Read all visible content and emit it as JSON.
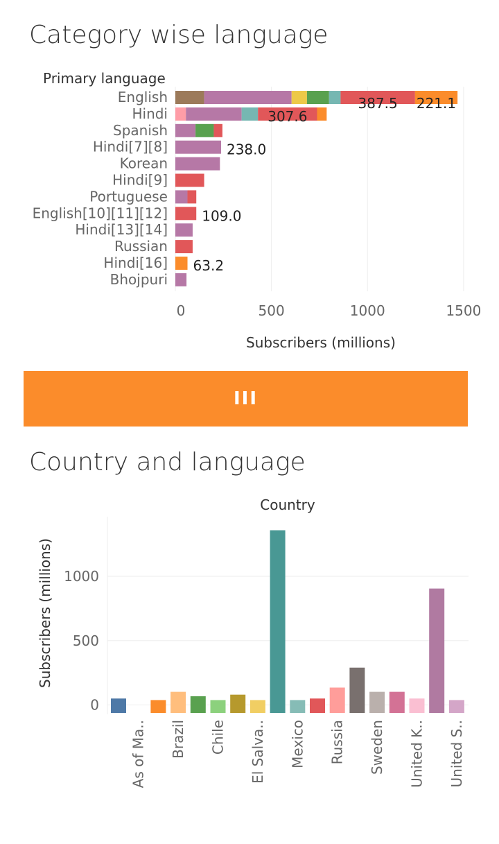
{
  "sections": {
    "top_title": "Category wise language",
    "bottom_title": "Country and language",
    "divider_label": "III"
  },
  "chart_data": [
    {
      "type": "bar",
      "orientation": "horizontal",
      "stacked": true,
      "title": "Category wise language",
      "ylabel": "Primary language",
      "xlabel": "Subscribers (millions)",
      "xlim": [
        0,
        1500
      ],
      "xticks": [
        0,
        500,
        1000,
        1500
      ],
      "grid": true,
      "categories": [
        "English",
        "Hindi",
        "Spanish",
        "Hindi[7][8]",
        "Korean",
        "Hindi[9]",
        "Portuguese",
        "English[10][11][12]",
        "Hindi[13][14]",
        "Russian",
        "Hindi[16]",
        "Bhojpuri"
      ],
      "rows": [
        {
          "segments": [
            {
              "value": 150,
              "color": "#9c7a5a"
            },
            {
              "value": 455,
              "color": "#b678a6"
            },
            {
              "value": 80,
              "color": "#edc948"
            },
            {
              "value": 115,
              "color": "#59a14f"
            },
            {
              "value": 60,
              "color": "#76b7b2"
            },
            {
              "value": 387.5,
              "color": "#e15759"
            },
            {
              "value": 221.1,
              "color": "#fb8c2b"
            }
          ],
          "labels": [
            {
              "segment": 5,
              "text": "387.5"
            },
            {
              "segment": 6,
              "text": "221.1"
            }
          ]
        },
        {
          "segments": [
            {
              "value": 55,
              "color": "#ff9da7"
            },
            {
              "value": 290,
              "color": "#b678a6"
            },
            {
              "value": 85,
              "color": "#76b7b2"
            },
            {
              "value": 307.6,
              "color": "#e15759"
            },
            {
              "value": 50,
              "color": "#fb8c2b"
            }
          ],
          "labels": [
            {
              "segment": 3,
              "text": "307.6"
            }
          ]
        },
        {
          "segments": [
            {
              "value": 105,
              "color": "#b678a6"
            },
            {
              "value": 95,
              "color": "#59a14f"
            },
            {
              "value": 45,
              "color": "#e15759"
            }
          ],
          "labels": []
        },
        {
          "segments": [
            {
              "value": 238.0,
              "color": "#b678a6"
            }
          ],
          "labels": [
            {
              "segment": 0,
              "text": "238.0"
            }
          ]
        },
        {
          "segments": [
            {
              "value": 232,
              "color": "#b678a6"
            }
          ],
          "labels": []
        },
        {
          "segments": [
            {
              "value": 150,
              "color": "#e15759"
            }
          ],
          "labels": []
        },
        {
          "segments": [
            {
              "value": 63,
              "color": "#b678a6"
            },
            {
              "value": 46,
              "color": "#e15759"
            }
          ],
          "labels": []
        },
        {
          "segments": [
            {
              "value": 109.0,
              "color": "#e15759"
            }
          ],
          "labels": [
            {
              "segment": 0,
              "text": "109.0"
            }
          ]
        },
        {
          "segments": [
            {
              "value": 90,
              "color": "#b678a6"
            }
          ],
          "labels": []
        },
        {
          "segments": [
            {
              "value": 90,
              "color": "#e15759"
            }
          ],
          "labels": []
        },
        {
          "segments": [
            {
              "value": 63.2,
              "color": "#fb8c2b"
            }
          ],
          "labels": [
            {
              "segment": 0,
              "text": "63.2"
            }
          ]
        },
        {
          "segments": [
            {
              "value": 58,
              "color": "#b678a6"
            }
          ],
          "labels": []
        }
      ]
    },
    {
      "type": "bar",
      "orientation": "vertical",
      "title": "Country and language",
      "header": "Country",
      "ylabel": "Subscribers (millions)",
      "xlabel": "",
      "ylim": [
        -60,
        1400
      ],
      "yticks": [
        0,
        500,
        1000
      ],
      "grid": true,
      "bars": [
        {
          "category": "",
          "value": 50,
          "color": "#4e79a7"
        },
        {
          "category": "As of Ma..",
          "value": 0,
          "color": "#a0cbe8"
        },
        {
          "category": "",
          "value": 38,
          "color": "#fb8c2b"
        },
        {
          "category": "Brazil",
          "value": 102,
          "color": "#ffbe7d"
        },
        {
          "category": "",
          "value": 68,
          "color": "#59a14f"
        },
        {
          "category": "Chile",
          "value": 38,
          "color": "#8cd17d"
        },
        {
          "category": "",
          "value": 80,
          "color": "#b6992d"
        },
        {
          "category": "El Salva..",
          "value": 38,
          "color": "#f1ce63"
        },
        {
          "category": "",
          "value": 1358,
          "color": "#499894"
        },
        {
          "category": "Mexico",
          "value": 38,
          "color": "#86bcb6"
        },
        {
          "category": "",
          "value": 50,
          "color": "#e15759"
        },
        {
          "category": "Russia",
          "value": 135,
          "color": "#ff9d9a"
        },
        {
          "category": "",
          "value": 290,
          "color": "#79706e"
        },
        {
          "category": "Sweden",
          "value": 102,
          "color": "#bab0ac"
        },
        {
          "category": "",
          "value": 102,
          "color": "#d37295"
        },
        {
          "category": "United K..",
          "value": 50,
          "color": "#fabfd2"
        },
        {
          "category": "",
          "value": 905,
          "color": "#b07aa1"
        },
        {
          "category": "United S..",
          "value": 38,
          "color": "#d4a6c8"
        }
      ]
    }
  ]
}
